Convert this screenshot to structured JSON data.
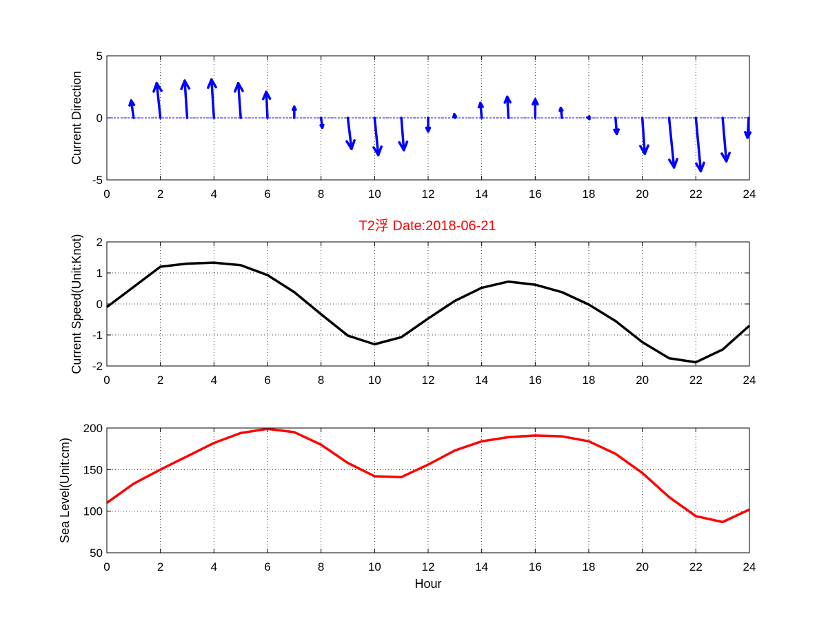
{
  "title": "T2浮   Date:2018-06-21",
  "colors": {
    "title": "#ff0000",
    "quiver": "#0000ff",
    "speed": "#000000",
    "sea_level": "#ff0000"
  },
  "chart_data": [
    {
      "type": "quiver",
      "ylabel": "Current Direction",
      "xlim": [
        0,
        24
      ],
      "ylim": [
        -5,
        5
      ],
      "xticks": [
        0,
        2,
        4,
        6,
        8,
        10,
        12,
        14,
        16,
        18,
        20,
        22,
        24
      ],
      "yticks": [
        -5,
        0,
        5
      ],
      "grid": true,
      "arrows": [
        {
          "x": 1,
          "u": -0.2,
          "v": 1.4
        },
        {
          "x": 2,
          "u": -0.3,
          "v": 2.8
        },
        {
          "x": 3,
          "u": -0.2,
          "v": 3.0
        },
        {
          "x": 4,
          "u": -0.2,
          "v": 3.1
        },
        {
          "x": 5,
          "u": -0.2,
          "v": 2.8
        },
        {
          "x": 6,
          "u": -0.1,
          "v": 2.1
        },
        {
          "x": 7,
          "u": 0.0,
          "v": 0.9
        },
        {
          "x": 8,
          "u": 0.1,
          "v": -0.8
        },
        {
          "x": 9,
          "u": 0.3,
          "v": -2.5
        },
        {
          "x": 10,
          "u": 0.3,
          "v": -3.0
        },
        {
          "x": 11,
          "u": 0.2,
          "v": -2.6
        },
        {
          "x": 12,
          "u": 0.0,
          "v": -1.1
        },
        {
          "x": 13,
          "u": -0.05,
          "v": 0.3
        },
        {
          "x": 14,
          "u": -0.1,
          "v": 1.2
        },
        {
          "x": 15,
          "u": -0.1,
          "v": 1.7
        },
        {
          "x": 16,
          "u": 0.0,
          "v": 1.5
        },
        {
          "x": 17,
          "u": -0.1,
          "v": 0.8
        },
        {
          "x": 18,
          "u": 0.05,
          "v": -0.1
        },
        {
          "x": 19,
          "u": 0.1,
          "v": -1.3
        },
        {
          "x": 20,
          "u": 0.2,
          "v": -2.9
        },
        {
          "x": 21,
          "u": 0.4,
          "v": -4.0
        },
        {
          "x": 22,
          "u": 0.4,
          "v": -4.3
        },
        {
          "x": 23,
          "u": 0.3,
          "v": -3.5
        },
        {
          "x": 24,
          "u": -0.1,
          "v": -1.6
        }
      ]
    },
    {
      "type": "line",
      "ylabel": "Current Speed(Unit:Knot)",
      "xlim": [
        0,
        24
      ],
      "ylim": [
        -2,
        2
      ],
      "xticks": [
        0,
        2,
        4,
        6,
        8,
        10,
        12,
        14,
        16,
        18,
        20,
        22,
        24
      ],
      "yticks": [
        -2,
        -1,
        0,
        1,
        2
      ],
      "grid": true,
      "x": [
        0,
        1,
        2,
        3,
        4,
        5,
        6,
        7,
        8,
        9,
        10,
        11,
        12,
        13,
        14,
        15,
        16,
        17,
        18,
        19,
        20,
        21,
        22,
        23,
        24
      ],
      "y": [
        -0.1,
        0.55,
        1.2,
        1.3,
        1.33,
        1.25,
        0.93,
        0.38,
        -0.33,
        -1.02,
        -1.3,
        -1.07,
        -0.47,
        0.1,
        0.52,
        0.72,
        0.62,
        0.38,
        -0.02,
        -0.55,
        -1.23,
        -1.75,
        -1.88,
        -1.47,
        -0.7
      ]
    },
    {
      "type": "line",
      "ylabel": "Sea Level(Unit:cm)",
      "xlabel": "Hour",
      "xlim": [
        0,
        24
      ],
      "ylim": [
        50,
        200
      ],
      "xticks": [
        0,
        2,
        4,
        6,
        8,
        10,
        12,
        14,
        16,
        18,
        20,
        22,
        24
      ],
      "yticks": [
        50,
        100,
        150,
        200
      ],
      "grid": true,
      "x": [
        0,
        1,
        2,
        3,
        4,
        5,
        6,
        7,
        8,
        9,
        10,
        11,
        12,
        13,
        14,
        15,
        16,
        17,
        18,
        19,
        20,
        21,
        22,
        23,
        24
      ],
      "y": [
        110,
        133,
        150,
        166,
        182,
        194,
        199,
        195,
        180,
        158,
        142,
        141,
        156,
        173,
        184,
        189,
        191,
        190,
        184,
        169,
        146,
        117,
        94,
        87,
        102
      ]
    }
  ]
}
